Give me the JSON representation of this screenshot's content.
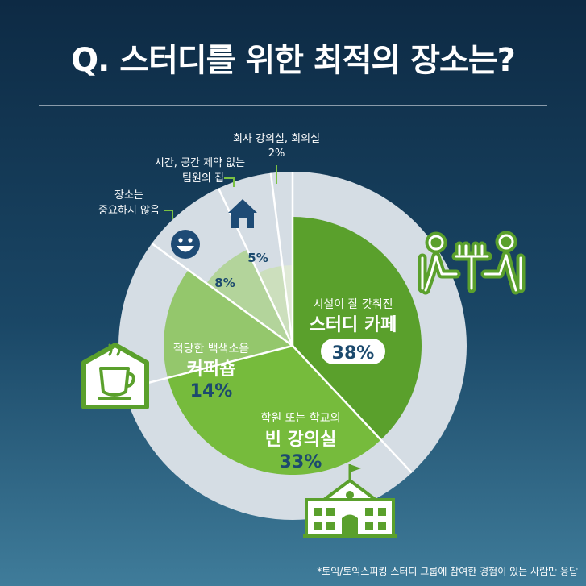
{
  "title": "Q. 스터디를 위한 최적의 장소는?",
  "footnote": "*토익/토익스피킹 스터디 그룹에 참여한 경험이 있는 사람만 응답",
  "colors": {
    "outer_ring": "#d5dde4",
    "ring_border": "#ffffff",
    "cafe": "#5aa02c",
    "lecture": "#76bb3c",
    "coffee": "#94c76c",
    "none": "#b3d49b",
    "house": "#ccdfbd",
    "office": "#dfe9d6",
    "dark_text": "#1c4a6e",
    "icon_green": "#5aa02c",
    "icon_navy": "#1e4b75",
    "leader_line": "#7ac142"
  },
  "chart_data": {
    "type": "pie",
    "title": "Q. 스터디를 위한 최적의 장소는?",
    "unit": "%",
    "slices": [
      {
        "label_top": "시설이 잘 갖춰진",
        "label_main": "스터디 카페",
        "value": 38,
        "value_label": "38%"
      },
      {
        "label_top": "학원 또는 학교의",
        "label_main": "빈 강의실",
        "value": 33,
        "value_label": "33%"
      },
      {
        "label_top": "적당한 백색소음",
        "label_main": "커피숍",
        "value": 14,
        "value_label": "14%"
      },
      {
        "label_lines": [
          "장소는",
          "중요하지 않음"
        ],
        "value": 8,
        "value_label": "8%"
      },
      {
        "label_lines": [
          "시간, 공간 제약 없는",
          "팀원의 집"
        ],
        "value": 5,
        "value_label": "5%"
      },
      {
        "label_lines": [
          "회사 강의실, 회의실"
        ],
        "value": 2,
        "value_label": "2%"
      }
    ]
  }
}
